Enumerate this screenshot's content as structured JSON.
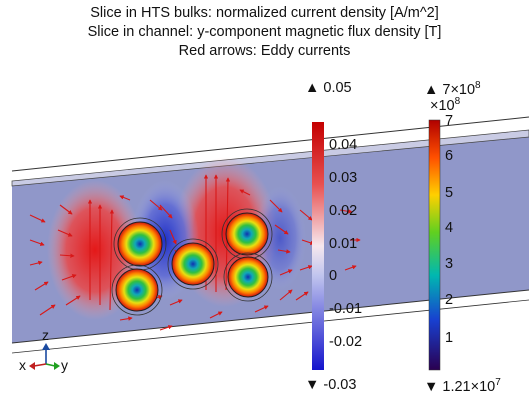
{
  "titles": {
    "line1": "Slice in HTS bulks: normalized current density [A/m^2]",
    "line2": "Slice in channel: y-component magnetic flux density [T]",
    "line3": "Red arrows: Eddy currents"
  },
  "colorbar_diverging": {
    "max_label": "▲ 0.05",
    "min_label": "▼ -0.03",
    "ticks": [
      "0.04",
      "0.03",
      "0.02",
      "0.01",
      "0",
      "-0.01",
      "-0.02"
    ],
    "colors": [
      "#c00000",
      "#ffffff",
      "#1010d0"
    ]
  },
  "colorbar_rainbow": {
    "max_label": "▲ 7×10",
    "max_exp": "8",
    "scale_label": "×10",
    "scale_exp": "8",
    "min_label": "▼ 1.21×10",
    "min_exp": "7",
    "ticks": [
      "7",
      "6",
      "5",
      "4",
      "3",
      "2",
      "1"
    ],
    "colors": [
      "#c80000",
      "#ff7a00",
      "#ffe000",
      "#22c040",
      "#00b0c0",
      "#1040d0",
      "#300060"
    ]
  },
  "axes_triad": {
    "z": "z",
    "x": "x",
    "y": "y"
  },
  "colors": {
    "channel": "#8f95c8",
    "arrow": "#d81818",
    "current_red": "#e02020",
    "current_blue": "#2030c0"
  }
}
